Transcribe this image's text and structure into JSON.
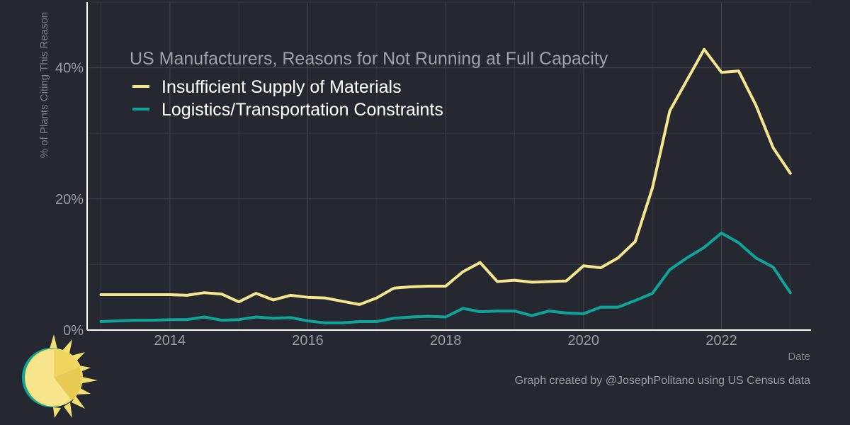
{
  "chart_data": {
    "type": "line",
    "title": "US Manufacturers, Reasons for Not Running at Full Capacity",
    "xlabel": "Date",
    "ylabel": "% of Plants Citing This Reason",
    "xlim": [
      2012.8,
      2023.3
    ],
    "ylim": [
      0,
      50
    ],
    "x_ticks": [
      2014,
      2016,
      2018,
      2020,
      2022
    ],
    "x_tick_labels": [
      "2014",
      "2016",
      "2018",
      "2020",
      "2022"
    ],
    "y_ticks": [
      0,
      20,
      40
    ],
    "y_tick_labels": [
      "0%",
      "20%",
      "40%"
    ],
    "grid": true,
    "legend_position": "top-left",
    "x": [
      2013.0,
      2013.25,
      2013.5,
      2013.75,
      2014.0,
      2014.25,
      2014.5,
      2014.75,
      2015.0,
      2015.25,
      2015.5,
      2015.75,
      2016.0,
      2016.25,
      2016.5,
      2016.75,
      2017.0,
      2017.25,
      2017.5,
      2017.75,
      2018.0,
      2018.25,
      2018.5,
      2018.75,
      2019.0,
      2019.25,
      2019.5,
      2019.75,
      2020.0,
      2020.25,
      2020.5,
      2020.75,
      2021.0,
      2021.25,
      2021.5,
      2021.75,
      2022.0,
      2022.25,
      2022.5,
      2022.75,
      2023.0
    ],
    "series": [
      {
        "name": "Insufficient Supply of Materials",
        "color": "#f5e68c",
        "values": [
          5.4,
          5.4,
          5.4,
          5.4,
          5.4,
          5.3,
          5.7,
          5.5,
          4.3,
          5.6,
          4.6,
          5.3,
          5.0,
          4.9,
          4.4,
          3.9,
          4.9,
          6.4,
          6.6,
          6.7,
          6.7,
          8.9,
          10.3,
          7.4,
          7.6,
          7.3,
          7.4,
          7.5,
          9.8,
          9.5,
          11.0,
          13.5,
          21.7,
          33.4,
          38.1,
          42.8,
          39.3,
          39.5,
          34.3,
          27.8,
          23.9
        ]
      },
      {
        "name": "Logistics/Transportation Constraints",
        "color": "#0ea49a",
        "values": [
          1.3,
          1.4,
          1.5,
          1.5,
          1.6,
          1.6,
          2.0,
          1.5,
          1.6,
          2.0,
          1.8,
          1.9,
          1.4,
          1.1,
          1.1,
          1.3,
          1.3,
          1.8,
          2.0,
          2.1,
          2.0,
          3.3,
          2.8,
          2.9,
          2.9,
          2.2,
          2.9,
          2.6,
          2.5,
          3.5,
          3.5,
          4.5,
          5.6,
          9.2,
          11.0,
          12.6,
          14.8,
          13.3,
          11.0,
          9.6,
          5.7
        ]
      }
    ]
  },
  "caption": "Graph created by @JosephPolitano using US Census data"
}
